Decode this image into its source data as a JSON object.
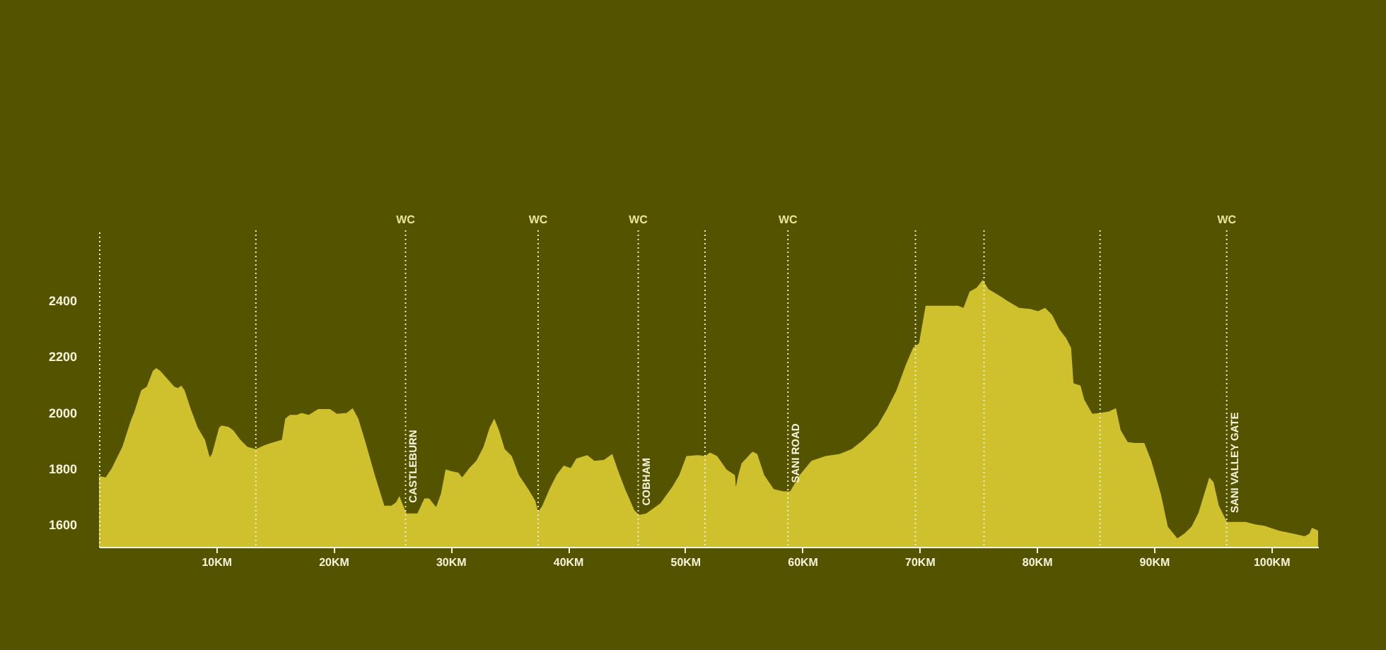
{
  "chart_data": {
    "type": "area",
    "x": [
      0,
      0.57,
      1.1,
      1.99,
      2.71,
      3.0,
      3.6,
      4.08,
      4.6,
      4.89,
      5.21,
      5.81,
      6.42,
      6.74,
      7.02,
      7.3,
      7.83,
      8.43,
      9.04,
      9.44,
      9.64,
      10.24,
      10.45,
      11.05,
      11.45,
      12.06,
      12.66,
      13.38,
      14.07,
      14.68,
      15.6,
      15.89,
      16.28,
      16.89,
      17.29,
      17.89,
      18.7,
      19.7,
      20.31,
      21.12,
      21.64,
      22.12,
      22.73,
      23.53,
      24.34,
      24.95,
      25.34,
      25.62,
      25.95,
      26.23,
      27.16,
      27.76,
      28.16,
      28.76,
      29.17,
      29.57,
      30.09,
      30.66,
      30.98,
      31.59,
      32.19,
      32.8,
      33.32,
      33.72,
      34.12,
      34.61,
      35.21,
      35.82,
      36.62,
      37.22,
      37.46,
      37.82,
      38.43,
      39.03,
      39.64,
      40.24,
      40.72,
      41.65,
      42.26,
      43.07,
      43.79,
      44.27,
      44.88,
      45.68,
      46.08,
      46.69,
      47.9,
      48.9,
      49.5,
      50.11,
      51.11,
      51.72,
      52.12,
      52.73,
      53.53,
      54.25,
      54.33,
      54.54,
      54.82,
      55.75,
      56.15,
      56.75,
      57.56,
      58.36,
      58.96,
      59.77,
      60.78,
      61.98,
      63.19,
      64.2,
      65.21,
      66.42,
      67.23,
      68.03,
      68.83,
      69.44,
      69.96,
      70.52,
      72.06,
      73.27,
      73.75,
      74.27,
      74.87,
      75.39,
      75.88,
      76.89,
      77.5,
      78.5,
      79.5,
      80.1,
      80.71,
      81.31,
      81.92,
      82.52,
      82.93,
      83.13,
      83.73,
      84.05,
      84.74,
      85.42,
      86.14,
      86.75,
      87.16,
      87.76,
      88.37,
      89.17,
      89.77,
      90.58,
      91.18,
      91.99,
      92.59,
      93.2,
      93.8,
      94.29,
      94.72,
      95.08,
      95.53,
      96.22,
      97.02,
      97.82,
      98.63,
      99.43,
      100.64,
      101.85,
      102.86,
      103.26,
      103.47,
      104.0
    ],
    "series": [
      {
        "color": "#cfc02e",
        "values": [
          1773,
          1768,
          1801,
          1877,
          1970,
          2000,
          2079,
          2092,
          2149,
          2158,
          2149,
          2121,
          2092,
          2087,
          2096,
          2079,
          2012,
          1945,
          1902,
          1840,
          1852,
          1945,
          1953,
          1948,
          1936,
          1902,
          1877,
          1869,
          1882,
          1891,
          1902,
          1978,
          1991,
          1991,
          1998,
          1991,
          2012,
          2012,
          1995,
          1998,
          2015,
          1978,
          1894,
          1776,
          1667,
          1667,
          1679,
          1701,
          1667,
          1639,
          1639,
          1693,
          1693,
          1662,
          1709,
          1796,
          1790,
          1785,
          1768,
          1801,
          1827,
          1877,
          1945,
          1978,
          1936,
          1869,
          1844,
          1776,
          1726,
          1684,
          1645,
          1667,
          1726,
          1776,
          1810,
          1801,
          1835,
          1847,
          1827,
          1830,
          1852,
          1793,
          1726,
          1650,
          1634,
          1639,
          1676,
          1734,
          1776,
          1844,
          1847,
          1844,
          1857,
          1844,
          1796,
          1776,
          1734,
          1776,
          1818,
          1860,
          1852,
          1776,
          1726,
          1718,
          1718,
          1776,
          1827,
          1844,
          1852,
          1869,
          1902,
          1953,
          2012,
          2079,
          2170,
          2230,
          2247,
          2381,
          2381,
          2381,
          2373,
          2431,
          2445,
          2473,
          2440,
          2415,
          2398,
          2373,
          2369,
          2361,
          2373,
          2348,
          2297,
          2264,
          2230,
          2104,
          2096,
          2045,
          1995,
          1998,
          2003,
          2015,
          1936,
          1894,
          1891,
          1891,
          1827,
          1709,
          1592,
          1550,
          1567,
          1592,
          1642,
          1709,
          1768,
          1751,
          1667,
          1609,
          1609,
          1609,
          1600,
          1595,
          1578,
          1567,
          1558,
          1567,
          1588,
          1578
        ]
      }
    ],
    "xlim": [
      0,
      104
    ],
    "xticks": [
      {
        "value": 10,
        "label": "10KM"
      },
      {
        "value": 20,
        "label": "20KM"
      },
      {
        "value": 30,
        "label": "30KM"
      },
      {
        "value": 40,
        "label": "40KM"
      },
      {
        "value": 50,
        "label": "50KM"
      },
      {
        "value": 60,
        "label": "60KM"
      },
      {
        "value": 70,
        "label": "70KM"
      },
      {
        "value": 80,
        "label": "80KM"
      },
      {
        "value": 90,
        "label": "90KM"
      },
      {
        "value": 100,
        "label": "100KM"
      }
    ],
    "ylim": [
      1520,
      2650
    ],
    "yticks": [
      1600,
      1800,
      2000,
      2200,
      2400
    ],
    "grid": false,
    "ref_lines": [
      {
        "axis": "x",
        "value": 13.38,
        "color": "#eeeacc",
        "line_style": "dotted"
      },
      {
        "axis": "x",
        "value": 26.15,
        "label": "CASTLEBURN",
        "color": "#eeeacc",
        "line_style": "dotted"
      },
      {
        "axis": "x",
        "value": 37.46,
        "color": "#eeeacc",
        "line_style": "dotted"
      },
      {
        "axis": "x",
        "value": 46.0,
        "label": "COBHAM",
        "color": "#eeeacc",
        "line_style": "dotted"
      },
      {
        "axis": "x",
        "value": 51.7,
        "color": "#eeeacc",
        "line_style": "dotted"
      },
      {
        "axis": "x",
        "value": 58.77,
        "label": "SANI ROAD",
        "color": "#eeeacc",
        "line_style": "dotted"
      },
      {
        "axis": "x",
        "value": 69.65,
        "color": "#eeeacc",
        "line_style": "dotted"
      },
      {
        "axis": "x",
        "value": 75.5,
        "color": "#eeeacc",
        "line_style": "dotted"
      },
      {
        "axis": "x",
        "value": 85.4,
        "color": "#eeeacc",
        "line_style": "dotted"
      },
      {
        "axis": "x",
        "value": 96.2,
        "label": "SANI VALLEY GATE",
        "color": "#eeeacc",
        "line_style": "dotted"
      }
    ],
    "annotations": [
      {
        "text": "WC",
        "x": 26.15,
        "y": 2650
      },
      {
        "text": "WC",
        "x": 37.46,
        "y": 2650
      },
      {
        "text": "WC",
        "x": 46.0,
        "y": 2650
      },
      {
        "text": "WC",
        "x": 58.77,
        "y": 2650
      },
      {
        "text": "WC",
        "x": 96.2,
        "y": 2650
      }
    ]
  }
}
